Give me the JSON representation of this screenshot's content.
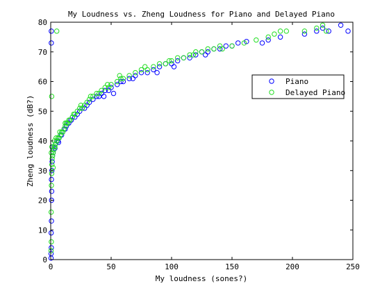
{
  "chart_data": {
    "type": "scatter",
    "title": "My Loudness vs. Zheng Loudness for Piano and Delayed Piano",
    "xlabel": "My loudness (sones?)",
    "ylabel": "Zheng loudness (dB?)",
    "xlim": [
      0,
      250
    ],
    "ylim": [
      0,
      80
    ],
    "xticks": [
      0,
      50,
      100,
      150,
      200,
      250
    ],
    "yticks": [
      0,
      10,
      20,
      30,
      40,
      50,
      60,
      70,
      80
    ],
    "grid": false,
    "legend_position": "right",
    "series": [
      {
        "name": "Piano",
        "color": "#0000ff",
        "marker": "open-circle",
        "points": [
          [
            0.3,
            2
          ],
          [
            0.5,
            4
          ],
          [
            0.4,
            9
          ],
          [
            0.6,
            13
          ],
          [
            0.7,
            20
          ],
          [
            0.8,
            23
          ],
          [
            0.6,
            27
          ],
          [
            1.0,
            30
          ],
          [
            1.2,
            33
          ],
          [
            1.5,
            35
          ],
          [
            2.0,
            36
          ],
          [
            2.5,
            37
          ],
          [
            1.8,
            38
          ],
          [
            3.0,
            38
          ],
          [
            4.0,
            39
          ],
          [
            5.0,
            40
          ],
          [
            6.0,
            40
          ],
          [
            7.0,
            41
          ],
          [
            8.0,
            42
          ],
          [
            9.0,
            42
          ],
          [
            10,
            43
          ],
          [
            11,
            44
          ],
          [
            12,
            44
          ],
          [
            13,
            45
          ],
          [
            14,
            46
          ],
          [
            15,
            46
          ],
          [
            16,
            47
          ],
          [
            17,
            47
          ],
          [
            18,
            48
          ],
          [
            20,
            48
          ],
          [
            22,
            49
          ],
          [
            24,
            50
          ],
          [
            26,
            51
          ],
          [
            28,
            51
          ],
          [
            30,
            52
          ],
          [
            32,
            53
          ],
          [
            35,
            54
          ],
          [
            38,
            55
          ],
          [
            40,
            55
          ],
          [
            42,
            56
          ],
          [
            45,
            57
          ],
          [
            48,
            57
          ],
          [
            50,
            58
          ],
          [
            55,
            59
          ],
          [
            58,
            60
          ],
          [
            60,
            60
          ],
          [
            65,
            61
          ],
          [
            70,
            62
          ],
          [
            75,
            63
          ],
          [
            80,
            63
          ],
          [
            85,
            64
          ],
          [
            90,
            65
          ],
          [
            95,
            66
          ],
          [
            100,
            66
          ],
          [
            105,
            67
          ],
          [
            110,
            68
          ],
          [
            115,
            68
          ],
          [
            120,
            69
          ],
          [
            125,
            70
          ],
          [
            130,
            70
          ],
          [
            135,
            71
          ],
          [
            140,
            71
          ],
          [
            145,
            72
          ],
          [
            150,
            72
          ],
          [
            155,
            73
          ],
          [
            162,
            73.5
          ],
          [
            175,
            73
          ],
          [
            180,
            74
          ],
          [
            190,
            75
          ],
          [
            210,
            76
          ],
          [
            220,
            77
          ],
          [
            225,
            78
          ],
          [
            230,
            77
          ],
          [
            240,
            79
          ],
          [
            246,
            77
          ],
          [
            0.5,
            73
          ],
          [
            0.5,
            77
          ],
          [
            0.3,
            0.5
          ],
          [
            3.5,
            37.5
          ],
          [
            6.5,
            39.5
          ],
          [
            44,
            55
          ],
          [
            52,
            56
          ],
          [
            68,
            61
          ],
          [
            88,
            63
          ],
          [
            102,
            65
          ],
          [
            128,
            69
          ]
        ]
      },
      {
        "name": "Delayed Piano",
        "color": "#22dd22",
        "marker": "open-circle",
        "points": [
          [
            0.3,
            3
          ],
          [
            0.5,
            6
          ],
          [
            0.4,
            16
          ],
          [
            0.6,
            25
          ],
          [
            0.8,
            29
          ],
          [
            1.0,
            32
          ],
          [
            1.2,
            34
          ],
          [
            1.5,
            35
          ],
          [
            2.0,
            36
          ],
          [
            2.5,
            37
          ],
          [
            3.0,
            38
          ],
          [
            3.5,
            38
          ],
          [
            4.0,
            39
          ],
          [
            5.0,
            40
          ],
          [
            6.0,
            41
          ],
          [
            7.0,
            41
          ],
          [
            8.0,
            42
          ],
          [
            9.0,
            43
          ],
          [
            10,
            43
          ],
          [
            11,
            44
          ],
          [
            12,
            45
          ],
          [
            13,
            46
          ],
          [
            14,
            46
          ],
          [
            15,
            47
          ],
          [
            16,
            47
          ],
          [
            18,
            48
          ],
          [
            20,
            49
          ],
          [
            22,
            50
          ],
          [
            24,
            51
          ],
          [
            26,
            51
          ],
          [
            28,
            52
          ],
          [
            30,
            53
          ],
          [
            32,
            54
          ],
          [
            35,
            55
          ],
          [
            38,
            56
          ],
          [
            40,
            56
          ],
          [
            42,
            57
          ],
          [
            45,
            58
          ],
          [
            48,
            58
          ],
          [
            50,
            59
          ],
          [
            55,
            60
          ],
          [
            58,
            61
          ],
          [
            60,
            61
          ],
          [
            65,
            62
          ],
          [
            70,
            63
          ],
          [
            75,
            64
          ],
          [
            80,
            64
          ],
          [
            85,
            65
          ],
          [
            90,
            66
          ],
          [
            95,
            66
          ],
          [
            100,
            67
          ],
          [
            105,
            68
          ],
          [
            110,
            68
          ],
          [
            115,
            69
          ],
          [
            120,
            70
          ],
          [
            125,
            70
          ],
          [
            130,
            71
          ],
          [
            135,
            71
          ],
          [
            140,
            72
          ],
          [
            150,
            72
          ],
          [
            160,
            73
          ],
          [
            170,
            74
          ],
          [
            180,
            75
          ],
          [
            185,
            76
          ],
          [
            190,
            77
          ],
          [
            195,
            77
          ],
          [
            210,
            77
          ],
          [
            220,
            78
          ],
          [
            225,
            79
          ],
          [
            228,
            77
          ],
          [
            5,
            77
          ],
          [
            0.8,
            55
          ],
          [
            2.0,
            31
          ],
          [
            0.5,
            36
          ],
          [
            1.0,
            38
          ],
          [
            3.0,
            40
          ],
          [
            4.5,
            41
          ],
          [
            7.5,
            43
          ],
          [
            12,
            46
          ],
          [
            19,
            49
          ],
          [
            25,
            52
          ],
          [
            33,
            55
          ],
          [
            47,
            59
          ],
          [
            57,
            62
          ],
          [
            78,
            65
          ],
          [
            98,
            67
          ],
          [
            118,
            69
          ],
          [
            142,
            71
          ]
        ]
      }
    ]
  }
}
